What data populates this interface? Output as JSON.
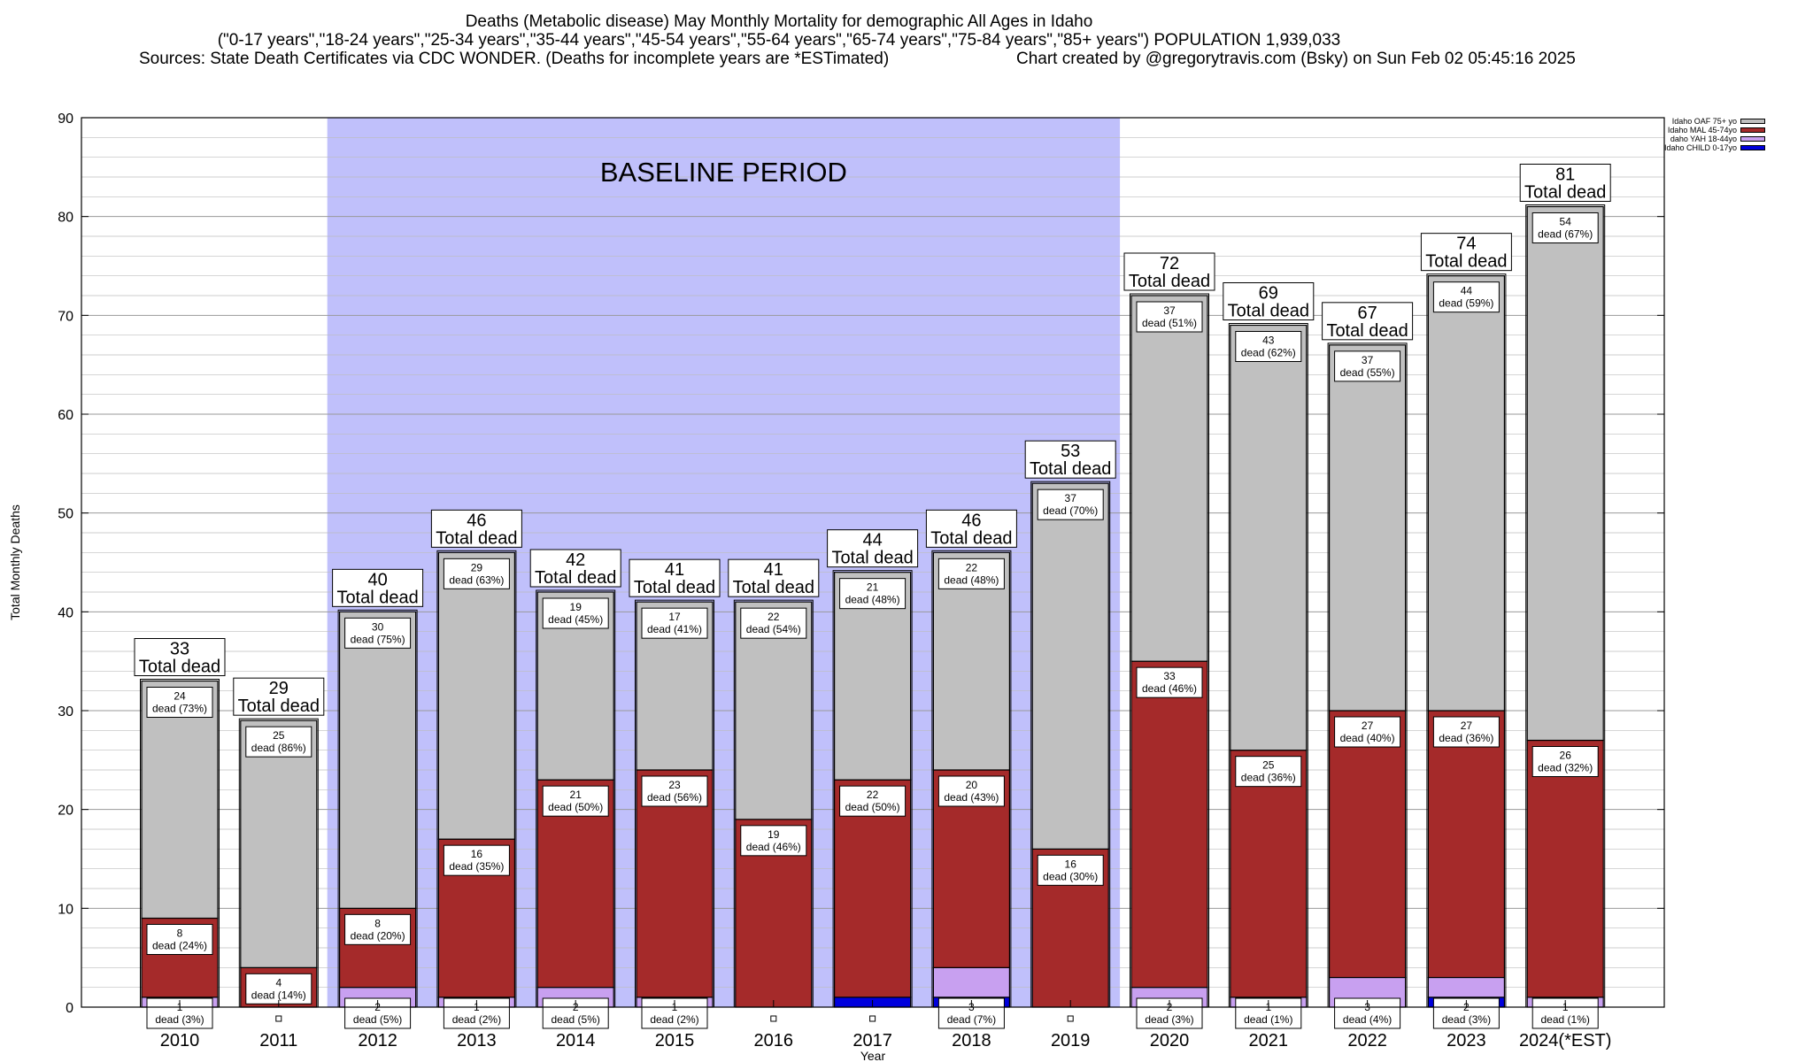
{
  "title": {
    "line1": "Deaths (Metabolic disease) May Monthly Mortality for demographic All Ages in Idaho",
    "line2": "(\"0-17 years\",\"18-24 years\",\"25-34 years\",\"35-44 years\",\"45-54 years\",\"55-64 years\",\"65-74 years\",\"75-84 years\",\"85+ years\") POPULATION 1,939,033",
    "sources": "Sources: State Death Certificates via CDC WONDER. (Deaths for incomplete years are *ESTimated)",
    "credit": "Chart created by @gregorytravis.com (Bsky) on Sun Feb 02 05:45:16 2025"
  },
  "chart_data": {
    "type": "bar",
    "stacked": true,
    "xlabel": "Year",
    "ylabel": "Total Monthly Deaths",
    "ylim": [
      0,
      90
    ],
    "yticks": [
      0,
      10,
      20,
      30,
      40,
      50,
      60,
      70,
      80,
      90
    ],
    "grid": true,
    "legend_position": "top-right, outside plot",
    "shaded_region": {
      "label": "BASELINE PERIOD",
      "from_category": "2012",
      "to_category": "2019",
      "color": "#c0c0fb"
    },
    "total_suffix": "Total dead",
    "dead_word": "dead",
    "categories": [
      "2010",
      "2011",
      "2012",
      "2013",
      "2014",
      "2015",
      "2016",
      "2017",
      "2018",
      "2019",
      "2020",
      "2021",
      "2022",
      "2023",
      "2024(*EST)"
    ],
    "totals": [
      33,
      29,
      40,
      46,
      42,
      41,
      41,
      44,
      46,
      53,
      72,
      69,
      67,
      74,
      81
    ],
    "series": [
      {
        "name": "Idaho CHILD 0-17yo",
        "color": "#0000dd",
        "values": [
          0,
          0,
          0,
          0,
          0,
          0,
          0,
          1,
          1,
          0,
          0,
          0,
          0,
          1,
          0
        ],
        "labels": [
          null,
          null,
          null,
          null,
          null,
          null,
          null,
          null,
          null,
          null,
          null,
          null,
          null,
          null,
          null
        ]
      },
      {
        "name": "daho YAH 18-44yo",
        "color": "#c8a0f0",
        "values": [
          1,
          0,
          2,
          1,
          2,
          1,
          0,
          0,
          3,
          0,
          2,
          1,
          3,
          2,
          1
        ],
        "labels": [
          "1",
          null,
          "2",
          "1",
          "2",
          "1",
          null,
          null,
          "3",
          null,
          "2",
          "1",
          "3",
          "2",
          "1"
        ],
        "pct": [
          "(3%)",
          null,
          "(5%)",
          "(2%)",
          "(5%)",
          "(2%)",
          null,
          null,
          "(7%)",
          null,
          "(3%)",
          "(1%)",
          "(4%)",
          "(3%)",
          "(1%)"
        ]
      },
      {
        "name": "Idaho MAL 45-74yo",
        "color": "#a52a2a",
        "values": [
          8,
          4,
          8,
          16,
          21,
          23,
          19,
          22,
          20,
          16,
          33,
          25,
          27,
          27,
          26
        ],
        "labels": [
          "8",
          "4",
          "8",
          "16",
          "21",
          "23",
          "19",
          "22",
          "20",
          "16",
          "33",
          "25",
          "27",
          "27",
          "26"
        ],
        "pct": [
          "(24%)",
          "(14%)",
          "(20%)",
          "(35%)",
          "(50%)",
          "(56%)",
          "(46%)",
          "(50%)",
          "(43%)",
          "(30%)",
          "(46%)",
          "(36%)",
          "(40%)",
          "(36%)",
          "(32%)"
        ]
      },
      {
        "name": "Idaho OAF 75+ yo",
        "color": "#c0c0c0",
        "values": [
          24,
          25,
          30,
          29,
          19,
          17,
          22,
          21,
          22,
          37,
          37,
          43,
          37,
          44,
          54
        ],
        "labels": [
          "24",
          "25",
          "30",
          "29",
          "19",
          "17",
          "22",
          "21",
          "22",
          "37",
          "37",
          "43",
          "37",
          "44",
          "54"
        ],
        "pct": [
          "(73%)",
          "(86%)",
          "(75%)",
          "(63%)",
          "(45%)",
          "(41%)",
          "(54%)",
          "(48%)",
          "(48%)",
          "(70%)",
          "(51%)",
          "(62%)",
          "(55%)",
          "(59%)",
          "(67%)"
        ]
      }
    ]
  },
  "legend": {
    "items": [
      {
        "label": "Idaho OAF 75+ yo",
        "color": "#c0c0c0"
      },
      {
        "label": "Idaho MAL 45-74yo",
        "color": "#a52a2a"
      },
      {
        "label": "daho YAH 18-44yo",
        "color": "#c8a0f0"
      },
      {
        "label": "Idaho CHILD 0-17yo",
        "color": "#0000dd"
      }
    ]
  }
}
